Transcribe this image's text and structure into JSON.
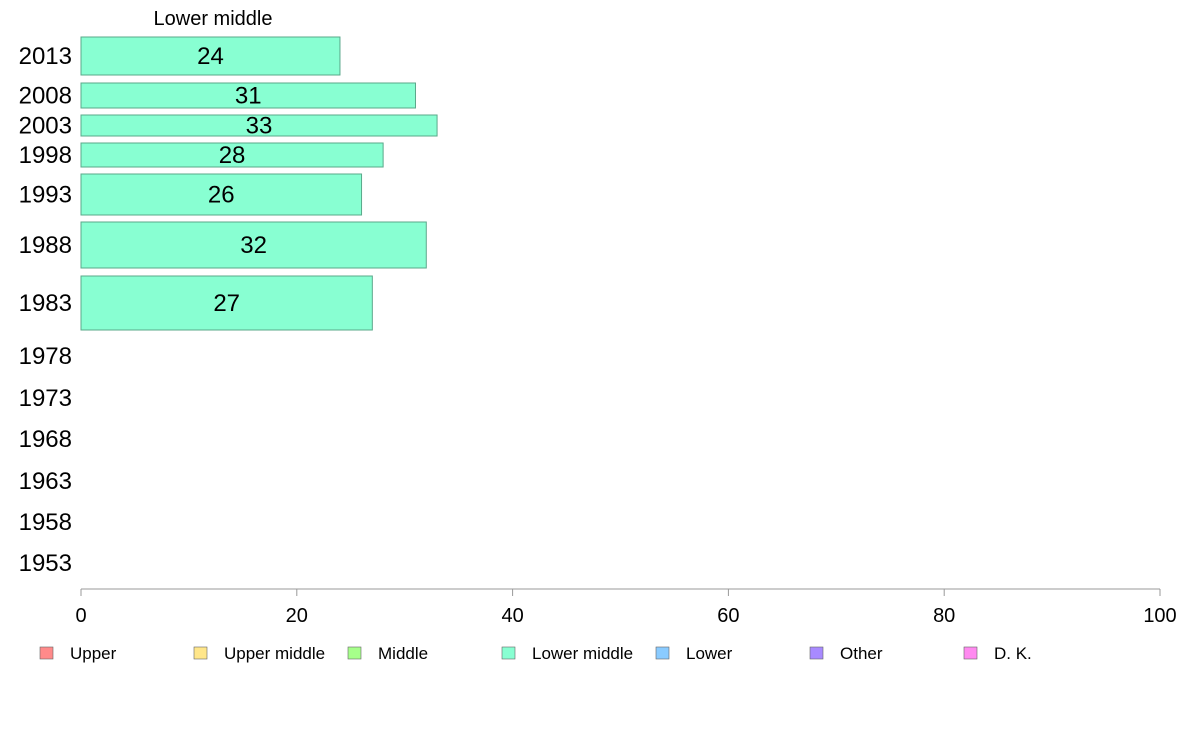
{
  "chart_data": {
    "type": "bar",
    "orientation": "horizontal",
    "title": "Lower middle",
    "categories": [
      "2013",
      "2008",
      "2003",
      "1998",
      "1993",
      "1988",
      "1983",
      "1978",
      "1973",
      "1968",
      "1963",
      "1958",
      "1953"
    ],
    "series": [
      {
        "name": "Lower middle",
        "color": "#88ffd2",
        "values": [
          24,
          31,
          33,
          28,
          26,
          32,
          27,
          null,
          null,
          null,
          null,
          null,
          null
        ],
        "labels": [
          "24",
          "31",
          "33",
          "28",
          "26",
          "32",
          "27",
          "",
          "",
          "",
          "",
          "",
          ""
        ]
      }
    ],
    "xlim": [
      0,
      100
    ],
    "xticks": [
      "0",
      "20",
      "40",
      "60",
      "80",
      "100"
    ],
    "grid": false,
    "legend": {
      "placement": "bottom",
      "items": [
        {
          "label": "Upper",
          "color": "#ff8a8a"
        },
        {
          "label": "Upper middle",
          "color": "#ffe68a"
        },
        {
          "label": "Middle",
          "color": "#a6ff8a"
        },
        {
          "label": "Lower middle",
          "color": "#88ffd2"
        },
        {
          "label": "Lower",
          "color": "#8acbff"
        },
        {
          "label": "Other",
          "color": "#a88aff"
        },
        {
          "label": "D. K.",
          "color": "#ff8af0"
        }
      ]
    }
  }
}
